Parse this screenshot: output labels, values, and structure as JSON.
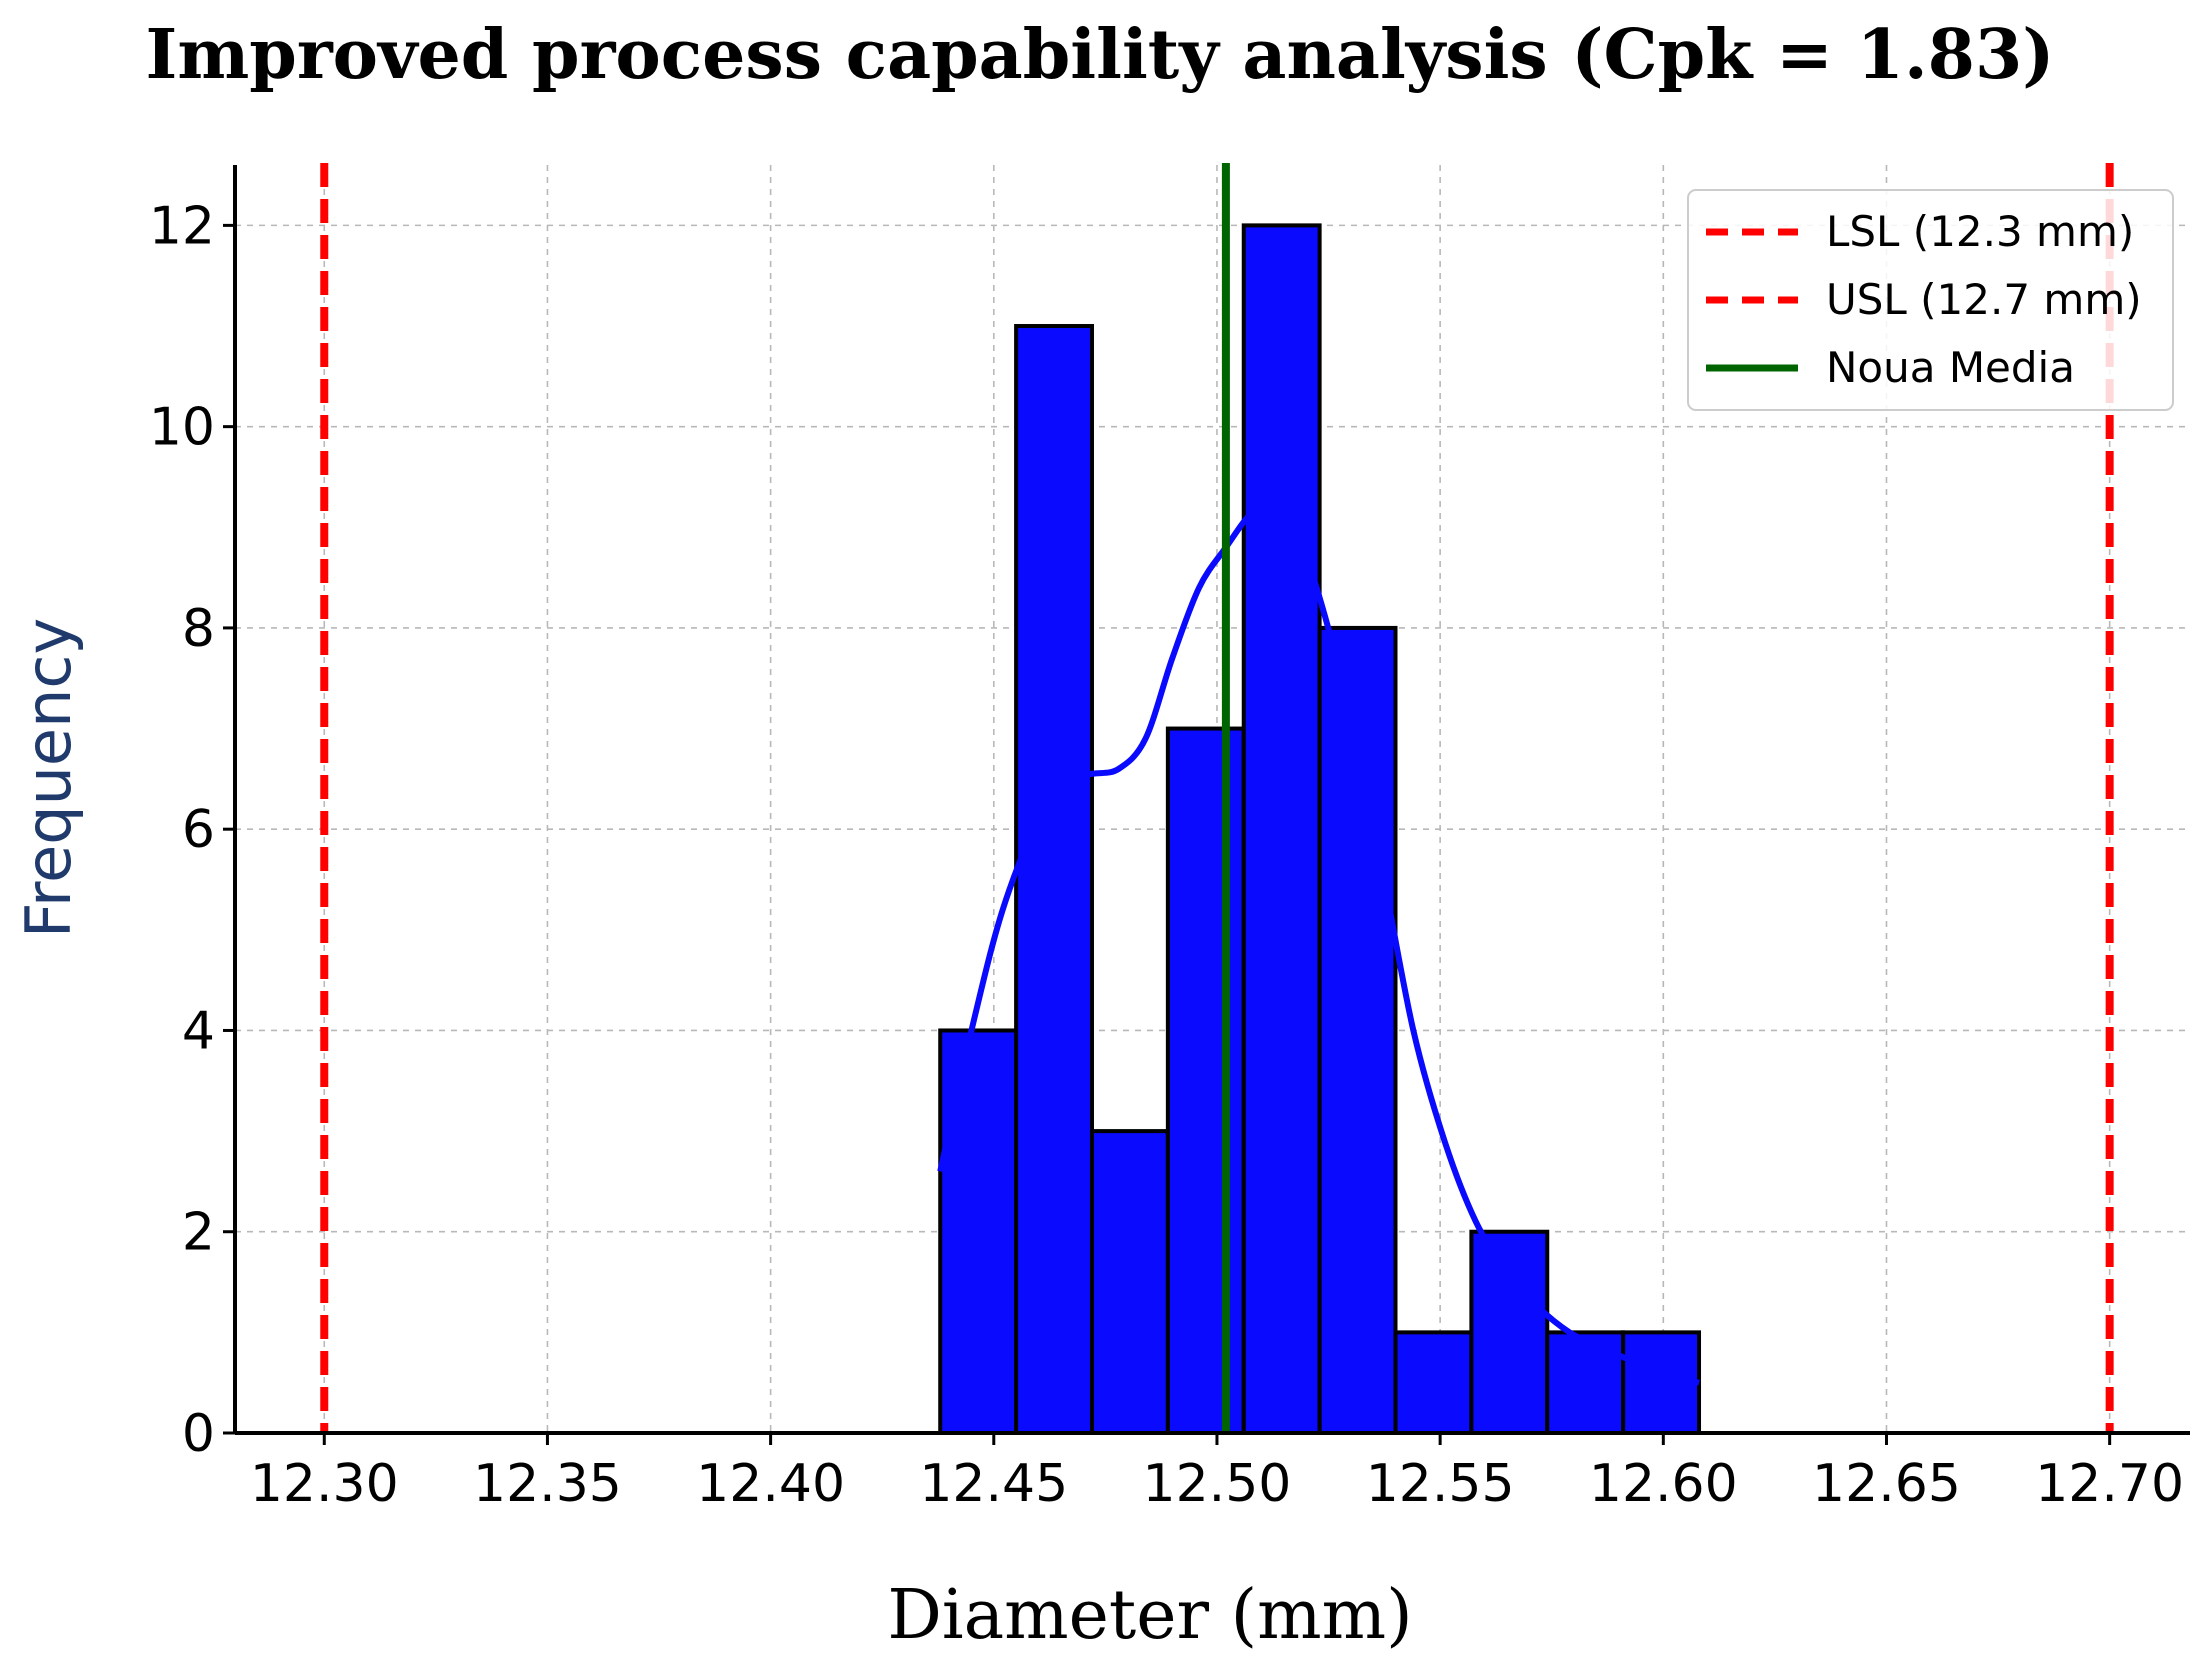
{
  "chart_data": {
    "type": "bar",
    "title": "Improved process capability analysis (Cpk = 1.83)",
    "xlabel": "Diameter (mm)",
    "ylabel": "Frequency",
    "xlim": [
      12.28,
      12.718
    ],
    "ylim": [
      0,
      12.6
    ],
    "x_ticks": [
      "12.30",
      "12.35",
      "12.40",
      "12.45",
      "12.50",
      "12.55",
      "12.60",
      "12.65",
      "12.70"
    ],
    "x_tick_values": [
      12.3,
      12.35,
      12.4,
      12.45,
      12.5,
      12.55,
      12.6,
      12.65,
      12.7
    ],
    "y_ticks": [
      "0",
      "2",
      "4",
      "6",
      "8",
      "10",
      "12"
    ],
    "y_tick_values": [
      0,
      2,
      4,
      6,
      8,
      10,
      12
    ],
    "grid": true,
    "legend_position": "top-right",
    "histogram": {
      "bin_edges": [
        12.438,
        12.455,
        12.472,
        12.489,
        12.506,
        12.523,
        12.54,
        12.557,
        12.574,
        12.591,
        12.608
      ],
      "counts": [
        4,
        11,
        3,
        7,
        12,
        8,
        1,
        2,
        1,
        1
      ],
      "color": "#0a0aff",
      "edgecolor": "#000000"
    },
    "kde": {
      "color": "#0a0aff",
      "x": [
        12.438,
        12.445,
        12.452,
        12.46,
        12.466,
        12.472,
        12.478,
        12.484,
        12.49,
        12.496,
        12.502,
        12.508,
        12.513,
        12.518,
        12.523,
        12.53,
        12.537,
        12.544,
        12.551,
        12.558,
        12.565,
        12.572,
        12.579,
        12.586,
        12.594,
        12.601,
        12.608
      ],
      "y": [
        2.6,
        4.0,
        5.2,
        6.1,
        6.5,
        6.55,
        6.6,
        6.9,
        7.7,
        8.4,
        8.8,
        9.15,
        9.2,
        8.9,
        8.3,
        7.1,
        5.6,
        4.0,
        2.9,
        2.1,
        1.6,
        1.25,
        1.0,
        0.85,
        0.7,
        0.58,
        0.5
      ]
    },
    "reference_lines": [
      {
        "name": "LSL (12.3 mm)",
        "x": 12.3,
        "color": "#ff0000",
        "style": "dashed"
      },
      {
        "name": "USL (12.7 mm)",
        "x": 12.7,
        "color": "#ff0000",
        "style": "dashed"
      },
      {
        "name": "Noua Media",
        "x": 12.502,
        "color": "#006400",
        "style": "solid"
      }
    ]
  }
}
